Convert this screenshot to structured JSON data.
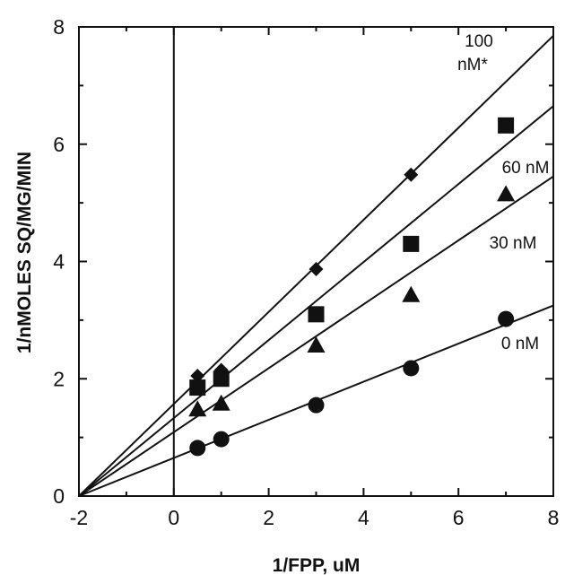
{
  "chart_data": {
    "type": "scatter",
    "title": "",
    "xlabel": "1/FPP, uM",
    "ylabel": "1/nMOLES SQ/MG/MIN",
    "xlim": [
      -2,
      8
    ],
    "ylim": [
      0,
      8
    ],
    "xticks": [
      -2,
      0,
      2,
      4,
      6,
      8
    ],
    "yticks": [
      0,
      2,
      4,
      6,
      8
    ],
    "grid": false,
    "vertical_reference_line_x": 0,
    "series": [
      {
        "name": "100 nM*",
        "marker": "diamond",
        "x": [
          0.5,
          1,
          3,
          5
        ],
        "y": [
          2.05,
          2.15,
          3.87,
          5.48
        ],
        "fit_line": {
          "x": [
            -2,
            8
          ],
          "y": [
            0,
            7.85
          ]
        }
      },
      {
        "name": "60 nM",
        "marker": "square",
        "x": [
          0.5,
          1,
          3,
          5,
          7
        ],
        "y": [
          1.85,
          2.0,
          3.1,
          4.3,
          6.32
        ],
        "fit_line": {
          "x": [
            -2,
            8
          ],
          "y": [
            0,
            6.65
          ]
        }
      },
      {
        "name": "30 nM",
        "marker": "triangle",
        "x": [
          0.5,
          1,
          3,
          5,
          7
        ],
        "y": [
          1.48,
          1.58,
          2.57,
          3.43,
          5.15
        ],
        "fit_line": {
          "x": [
            -2,
            8
          ],
          "y": [
            0,
            5.45
          ]
        }
      },
      {
        "name": "0 nM",
        "marker": "circle",
        "x": [
          0.5,
          1,
          3,
          5,
          7
        ],
        "y": [
          0.82,
          0.97,
          1.55,
          2.18,
          3.02
        ],
        "fit_line": {
          "x": [
            -2,
            8
          ],
          "y": [
            0,
            3.25
          ]
        }
      }
    ]
  }
}
